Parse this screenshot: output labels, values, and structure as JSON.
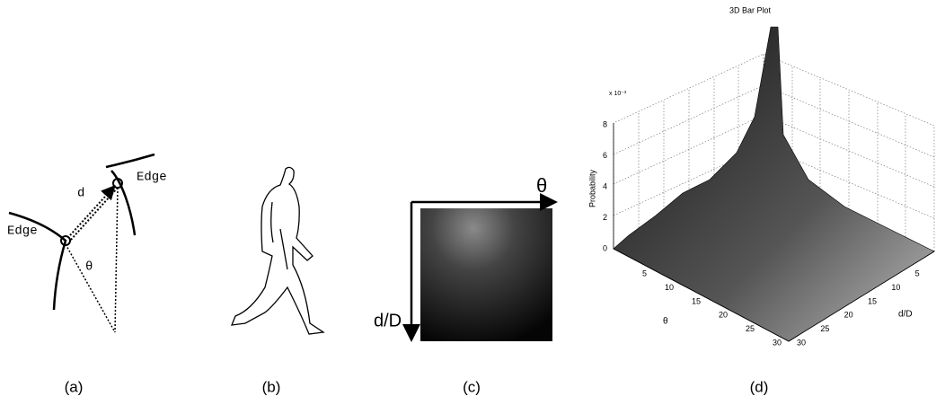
{
  "panels": [
    {
      "label": "(a)",
      "edge_upper": "Edge",
      "edge_lower": "Edge",
      "distance": "d",
      "angle": "θ"
    },
    {
      "label": "(b)"
    },
    {
      "label": "(c)",
      "x_axis": "θ",
      "y_axis": "d/D"
    },
    {
      "label": "(d)",
      "title": "3D Bar Plot",
      "z_label": "Probability",
      "z_multiplier": "x 10⁻³",
      "z_ticks": [
        0,
        2,
        4,
        6,
        8
      ],
      "x_label": "θ",
      "x_ticks": [
        5,
        10,
        15,
        20,
        25,
        30
      ],
      "y_label": "d/D",
      "y_ticks": [
        5,
        10,
        15,
        20,
        25,
        30
      ]
    }
  ]
}
